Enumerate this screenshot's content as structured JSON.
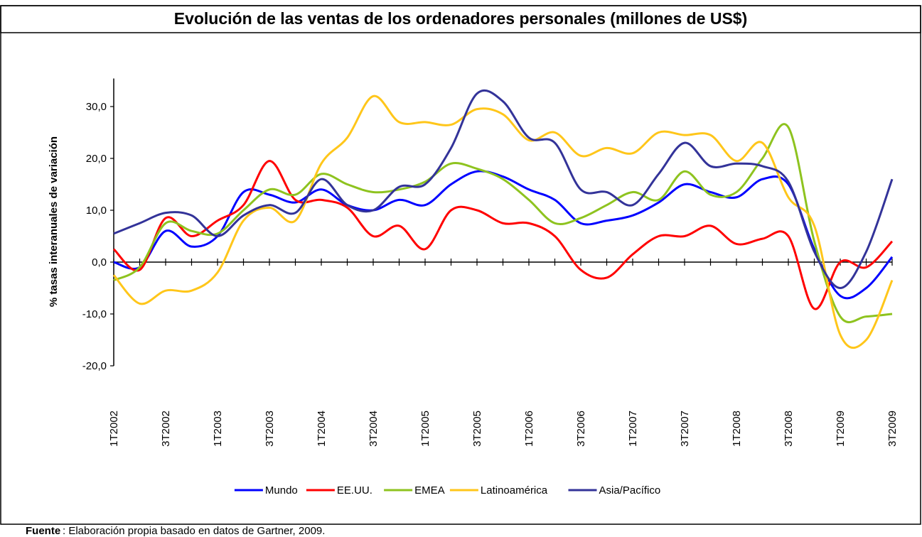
{
  "chart_data": {
    "type": "line",
    "title": "Evolución de las ventas de los ordenadores personales (millones de US$)",
    "y_label": "% tasas interanuales de variación",
    "source_label": "Fuente",
    "source_text": ": Elaboración propia basado en datos de Gartner, 2009.",
    "categories": [
      "1T2002",
      null,
      "3T2002",
      null,
      "1T2003",
      null,
      "3T2003",
      null,
      "1T2004",
      null,
      "3T2004",
      null,
      "1T2005",
      null,
      "3T2005",
      null,
      "1T2006",
      null,
      "3T2006",
      null,
      "1T2007",
      null,
      "3T2007",
      null,
      "1T2008",
      null,
      "3T2008",
      null,
      "1T2009",
      null,
      "3T2009"
    ],
    "ylim": [
      -20,
      35
    ],
    "yticks": [
      {
        "value": -20,
        "label": "-20,0"
      },
      {
        "value": -10,
        "label": "-10,0"
      },
      {
        "value": 0,
        "label": "0,0"
      },
      {
        "value": 10,
        "label": "10,0"
      },
      {
        "value": 20,
        "label": "20,0"
      },
      {
        "value": 30,
        "label": "30,0"
      }
    ],
    "legend": "bottom",
    "series": [
      {
        "name": "Mundo",
        "color": "#0000ff",
        "values": [
          0,
          -1,
          6,
          3,
          5,
          13.5,
          13,
          11.5,
          14,
          11,
          10,
          12,
          11,
          15,
          17.5,
          16.5,
          14,
          12,
          7.5,
          8,
          9,
          11.5,
          15,
          13.5,
          12.5,
          16,
          15,
          2.5,
          -6.5,
          -5,
          1
        ]
      },
      {
        "name": "EE.UU.",
        "color": "#ff0000",
        "values": [
          2.5,
          -1.5,
          8.5,
          5,
          8,
          11,
          19.5,
          12,
          12,
          10.5,
          5,
          7,
          2.5,
          10,
          10,
          7.5,
          7.5,
          5,
          -1.5,
          -3,
          1.5,
          5,
          5,
          7,
          3.5,
          4.5,
          5,
          -9,
          0,
          -1,
          4
        ]
      },
      {
        "name": "EMEA",
        "color": "#8ec31f",
        "values": [
          -3.5,
          -1,
          7.5,
          6,
          5.5,
          10,
          14,
          13,
          17,
          15,
          13.5,
          14,
          15.5,
          19,
          18,
          16,
          12,
          7.5,
          8.5,
          11,
          13.5,
          12,
          17.5,
          13,
          13.5,
          20,
          26,
          4,
          -10.5,
          -10.5,
          -10
        ]
      },
      {
        "name": "Latinoamérica",
        "color": "#ffc61a",
        "values": [
          -2.5,
          -8,
          -5.5,
          -5.5,
          -2,
          8,
          10.5,
          8,
          19,
          24,
          32,
          27,
          27,
          26.5,
          29.5,
          28.5,
          23.5,
          25,
          20.5,
          22,
          21,
          25,
          24.5,
          24.5,
          19.5,
          23,
          12.5,
          7,
          -14,
          -15,
          -3.5
        ]
      },
      {
        "name": "Asia/Pacífico",
        "color": "#333399",
        "values": [
          5.5,
          7.5,
          9.5,
          9,
          5,
          9,
          11,
          9.5,
          16,
          11,
          10,
          14.5,
          15,
          22,
          32.5,
          31,
          24,
          23,
          14,
          13.5,
          11,
          17,
          23,
          18.5,
          19,
          18.5,
          15.5,
          2,
          -5,
          2,
          16
        ]
      }
    ]
  }
}
